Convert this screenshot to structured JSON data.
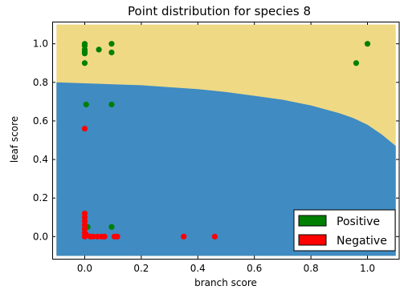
{
  "chart_data": {
    "type": "scatter",
    "title": "Point distribution for species 8",
    "xlabel": "branch score",
    "ylabel": "leaf score",
    "xlim": [
      -0.115,
      1.115
    ],
    "ylim": [
      -0.115,
      1.115
    ],
    "xticks": [
      0.0,
      0.2,
      0.4,
      0.6,
      0.8,
      1.0
    ],
    "yticks": [
      0.0,
      0.2,
      0.4,
      0.6,
      0.8,
      1.0
    ],
    "xtick_labels": [
      "0.0",
      "0.2",
      "0.4",
      "0.6",
      "0.8",
      "1.0"
    ],
    "ytick_labels": [
      "0.0",
      "0.2",
      "0.4",
      "0.6",
      "0.8",
      "1.0"
    ],
    "region_extent": {
      "x": [
        -0.1,
        1.1
      ],
      "y": [
        -0.1,
        1.1
      ]
    },
    "decision_boundary": {
      "x": [
        -0.1,
        0.0,
        0.1,
        0.2,
        0.3,
        0.4,
        0.5,
        0.6,
        0.7,
        0.8,
        0.9,
        0.95,
        1.0,
        1.05,
        1.1
      ],
      "y": [
        0.8,
        0.795,
        0.79,
        0.785,
        0.775,
        0.765,
        0.75,
        0.73,
        0.71,
        0.68,
        0.64,
        0.615,
        0.58,
        0.53,
        0.47
      ]
    },
    "regions": {
      "negative_color": "#3f8bc2",
      "positive_color": "#efd985"
    },
    "series": [
      {
        "name": "Positive",
        "color": "#008000",
        "points": [
          [
            0.0,
            1.0
          ],
          [
            0.0,
            0.99
          ],
          [
            0.0,
            0.97
          ],
          [
            0.0,
            0.96
          ],
          [
            0.0,
            0.95
          ],
          [
            0.0,
            0.9
          ],
          [
            0.05,
            0.97
          ],
          [
            0.095,
            1.0
          ],
          [
            0.095,
            0.955
          ],
          [
            0.96,
            0.9
          ],
          [
            1.0,
            1.0
          ],
          [
            0.005,
            0.685
          ],
          [
            0.095,
            0.685
          ],
          [
            0.01,
            0.05
          ],
          [
            0.095,
            0.05
          ]
        ]
      },
      {
        "name": "Negative",
        "color": "#ff0000",
        "points": [
          [
            0.0,
            0.56
          ],
          [
            0.0,
            0.12
          ],
          [
            0.0,
            0.1
          ],
          [
            0.0,
            0.08
          ],
          [
            0.0,
            0.06
          ],
          [
            0.0,
            0.04
          ],
          [
            0.0,
            0.02
          ],
          [
            0.0,
            0.0
          ],
          [
            0.005,
            0.01
          ],
          [
            0.02,
            0.0
          ],
          [
            0.03,
            0.0
          ],
          [
            0.045,
            0.0
          ],
          [
            0.06,
            0.0
          ],
          [
            0.07,
            0.0
          ],
          [
            0.105,
            0.0
          ],
          [
            0.115,
            0.0
          ],
          [
            0.35,
            0.0
          ],
          [
            0.46,
            0.0
          ]
        ]
      }
    ],
    "legend": {
      "placement": "bottom-right",
      "entries": [
        {
          "label": "Positive",
          "color": "#008000"
        },
        {
          "label": "Negative",
          "color": "#ff0000"
        }
      ]
    }
  }
}
